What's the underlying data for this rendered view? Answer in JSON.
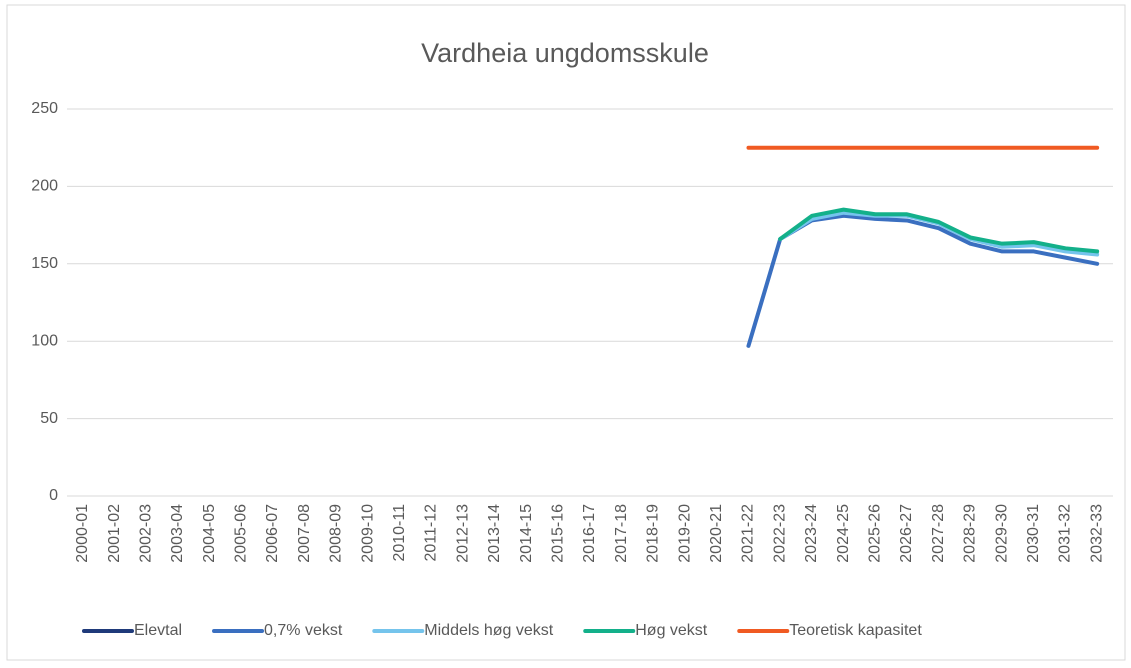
{
  "chart_data": {
    "type": "line",
    "title": "Vardheia ungdomsskule",
    "categories": [
      "2000-01",
      "2001-02",
      "2002-03",
      "2003-04",
      "2004-05",
      "2005-06",
      "2006-07",
      "2007-08",
      "2008-09",
      "2009-10",
      "2010-11",
      "2011-12",
      "2012-13",
      "2013-14",
      "2014-15",
      "2015-16",
      "2016-17",
      "2017-18",
      "2018-19",
      "2019-20",
      "2020-21",
      "2021-22",
      "2022-23",
      "2023-24",
      "2024-25",
      "2025-26",
      "2026-27",
      "2027-28",
      "2028-29",
      "2029-30",
      "2030-31",
      "2031-32",
      "2032-33"
    ],
    "series": [
      {
        "name": "Elevtal",
        "color": "#1f3a7a",
        "values": [
          null,
          null,
          null,
          null,
          null,
          null,
          null,
          null,
          null,
          null,
          null,
          null,
          null,
          null,
          null,
          null,
          null,
          null,
          null,
          null,
          null,
          97,
          null,
          null,
          null,
          null,
          null,
          null,
          null,
          null,
          null,
          null,
          null
        ]
      },
      {
        "name": "0,7% vekst",
        "color": "#3a6fc0",
        "values": [
          null,
          null,
          null,
          null,
          null,
          null,
          null,
          null,
          null,
          null,
          null,
          null,
          null,
          null,
          null,
          null,
          null,
          null,
          null,
          null,
          null,
          97,
          166,
          178,
          181,
          179,
          178,
          173,
          163,
          158,
          158,
          154,
          150
        ]
      },
      {
        "name": "Middels høg vekst",
        "color": "#75c4ec",
        "values": [
          null,
          null,
          null,
          null,
          null,
          null,
          null,
          null,
          null,
          null,
          null,
          null,
          null,
          null,
          null,
          null,
          null,
          null,
          null,
          null,
          null,
          null,
          166,
          179,
          183,
          181,
          181,
          176,
          166,
          161,
          162,
          158,
          156
        ]
      },
      {
        "name": "Høg vekst",
        "color": "#13b08a",
        "values": [
          null,
          null,
          null,
          null,
          null,
          null,
          null,
          null,
          null,
          null,
          null,
          null,
          null,
          null,
          null,
          null,
          null,
          null,
          null,
          null,
          null,
          null,
          166,
          181,
          185,
          182,
          182,
          177,
          167,
          163,
          164,
          160,
          158
        ]
      },
      {
        "name": "Teoretisk kapasitet",
        "color": "#f05a22",
        "values": [
          null,
          null,
          null,
          null,
          null,
          null,
          null,
          null,
          null,
          null,
          null,
          null,
          null,
          null,
          null,
          null,
          null,
          null,
          null,
          null,
          null,
          225,
          225,
          225,
          225,
          225,
          225,
          225,
          225,
          225,
          225,
          225,
          225
        ]
      }
    ],
    "ylim": [
      0,
      250
    ],
    "yticks": [
      0,
      50,
      100,
      150,
      200,
      250
    ],
    "grid": true,
    "legend": "bottom"
  }
}
